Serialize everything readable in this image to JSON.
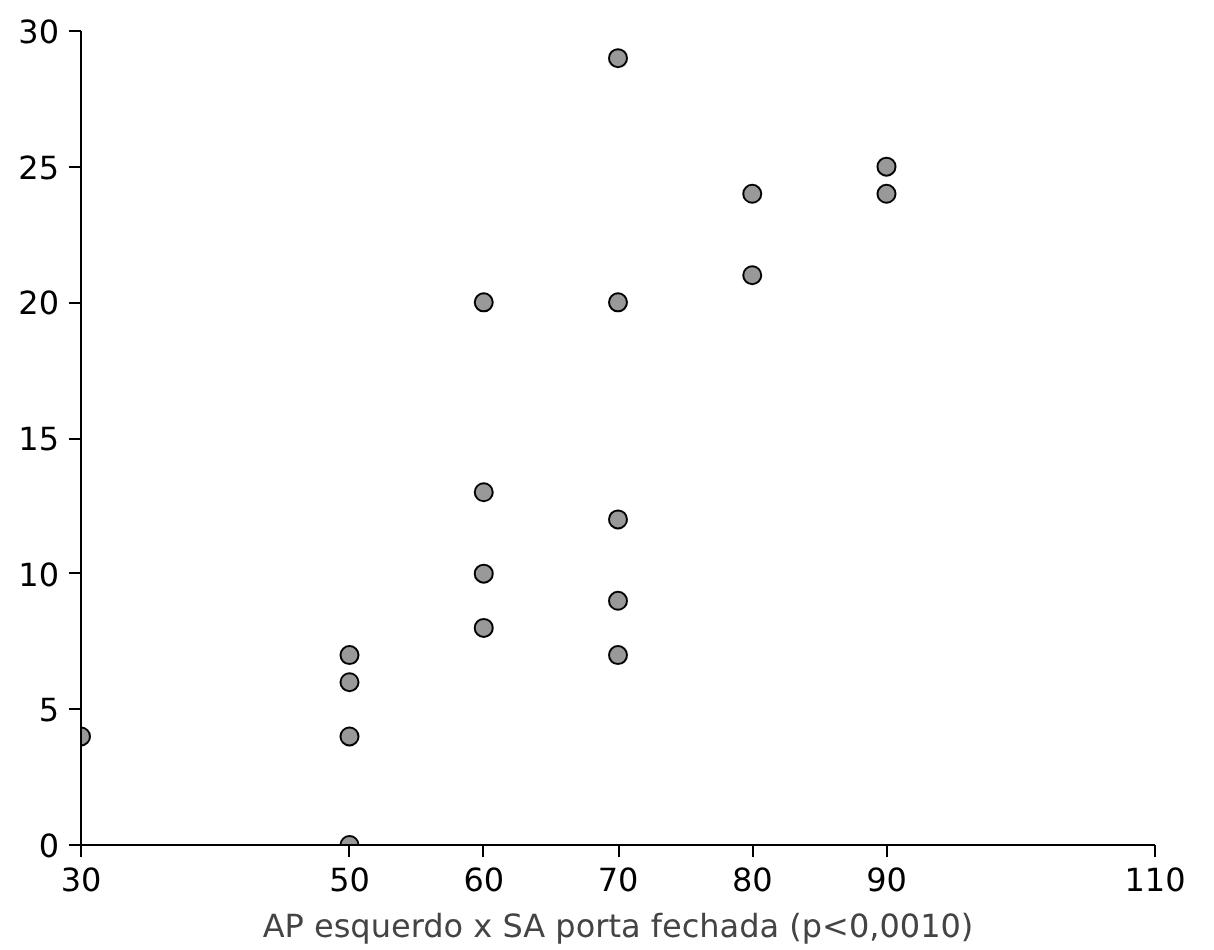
{
  "chart_data": {
    "type": "scatter",
    "xlabel": "AP esquerdo x SA porta fechada (p<0,0010)",
    "x": [
      30,
      50,
      50,
      50,
      50,
      60,
      60,
      60,
      60,
      70,
      70,
      70,
      70,
      70,
      80,
      80,
      90,
      90
    ],
    "values": [
      4,
      7,
      6,
      4,
      0,
      20,
      13,
      10,
      8,
      29,
      20,
      12,
      9,
      7,
      24,
      21,
      25,
      24
    ],
    "color": "#999999",
    "marker": "circle",
    "grid": false,
    "xlim": [
      30,
      110
    ],
    "xticks": [
      30,
      50,
      60,
      70,
      80,
      90,
      110
    ],
    "ylim": [
      0,
      30
    ],
    "yticks": [
      0,
      5,
      10,
      15,
      20,
      25,
      30
    ]
  }
}
